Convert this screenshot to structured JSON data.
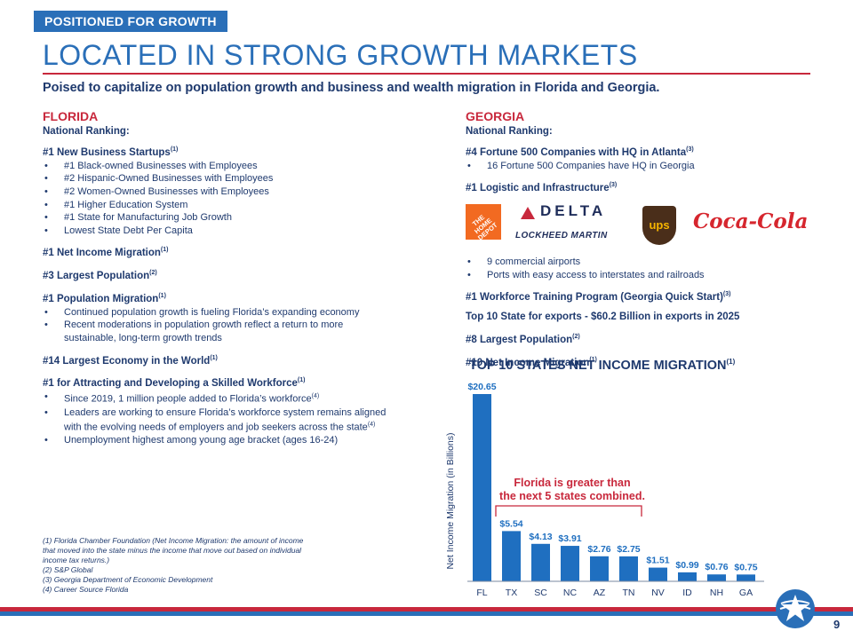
{
  "header": {
    "tag": "POSITIONED FOR GROWTH",
    "title": "LOCATED IN STRONG GROWTH MARKETS",
    "subtitle": "Poised to capitalize on population growth and business and wealth migration in Florida and Georgia."
  },
  "florida": {
    "title": "FLORIDA",
    "ranking_label": "National Ranking:",
    "h1": {
      "text": "#1 New Business Startups",
      "sup": "(1)"
    },
    "h1_bullets": [
      "#1 Black-owned Businesses with Employees",
      "#2 Hispanic-Owned Businesses with Employees",
      "#2 Women-Owned Businesses with Employees",
      "#1 Higher Education System",
      "#1 State for Manufacturing Job Growth",
      "Lowest State Debt Per Capita"
    ],
    "h2": {
      "text": "#1 Net Income Migration",
      "sup": "(1)"
    },
    "h3": {
      "text": "#3 Largest Population",
      "sup": "(2)"
    },
    "h4": {
      "text": "#1 Population Migration",
      "sup": "(1)"
    },
    "h4_bullets": [
      "Continued population growth is fueling Florida’s expanding economy",
      "Recent moderations in population growth reflect a return to more sustainable, long-term growth trends"
    ],
    "h5": {
      "text": "#14 Largest Economy in the World",
      "sup": "(1)"
    },
    "h6": {
      "text": "#1 for Attracting and Developing a Skilled Workforce",
      "sup": "(1)"
    },
    "h6_b1": {
      "text": "Since 2019, 1 million people added to Florida’s workforce",
      "sup": "(4)"
    },
    "h6_b2": {
      "text": "Leaders are working to ensure Florida’s workforce system remains aligned with the evolving needs of employers and job seekers across the state",
      "sup": "(4)"
    },
    "h6_b3": {
      "text": "Unemployment highest among young age bracket (ages 16-24)"
    }
  },
  "georgia": {
    "title": "GEORGIA",
    "ranking_label": "National Ranking:",
    "g1": {
      "text": "#4 Fortune 500 Companies with HQ in Atlanta",
      "sup": "(3)"
    },
    "g1_bullets": [
      "16 Fortune 500 Companies have HQ in Georgia"
    ],
    "g2": {
      "text": "#1 Logistic and Infrastructure",
      "sup": "(3)"
    },
    "logos": {
      "home_depot": "THE HOME DEPOT",
      "delta": "DELTA",
      "lockheed": "LOCKHEED MARTIN",
      "ups": "ups",
      "coca_cola": "Coca-Cola",
      "delta_color": "#c8283c",
      "home_depot_color": "#f26a21",
      "ups_color": "#4a2e1a",
      "coca_cola_color": "#d6262e"
    },
    "g2_bullets": [
      "9 commercial airports",
      "Ports with easy access to interstates and railroads"
    ],
    "g3": {
      "text": "#1 Workforce Training Program (Georgia Quick Start)",
      "sup": "(3)"
    },
    "g4": {
      "text": "Top 10 State for exports - $60.2 Billion in exports in 2025",
      "sup": ""
    },
    "g5": {
      "text": "#8 Largest Population",
      "sup": "(2)"
    },
    "g6": {
      "text": "#10 Net Income Migration",
      "sup": "(1)"
    }
  },
  "chart_data": {
    "type": "bar",
    "title": "TOP 10 STATES NET INCOME MIGRATION",
    "title_sup": "(1)",
    "ylabel": "Net Income Migration (in Billions)",
    "xlabel": "",
    "categories": [
      "FL",
      "TX",
      "SC",
      "NC",
      "AZ",
      "TN",
      "NV",
      "ID",
      "NH",
      "GA"
    ],
    "values": [
      20.65,
      5.54,
      4.13,
      3.91,
      2.76,
      2.75,
      1.51,
      0.99,
      0.76,
      0.75
    ],
    "labels": [
      "$20.65",
      "$5.54",
      "$4.13",
      "$3.91",
      "$2.76",
      "$2.75",
      "$1.51",
      "$0.99",
      "$0.76",
      "$0.75"
    ],
    "ylim": [
      0,
      21
    ],
    "grid": false,
    "bar_color": "#1f6fc0",
    "annotation": {
      "text": "Florida is greater than the next 5 states combined.",
      "color": "#c8283c",
      "span": [
        "TX",
        "TN"
      ]
    }
  },
  "footnotes": [
    "(1) Florida Chamber Foundation (Net Income Migration: the amount of income that moved into the state minus the income that move out based on individual income tax returns.)",
    "(2) S&P Global",
    "(3) Georgia Department of Economic Development",
    "(4) Career Source Florida"
  ],
  "footer": {
    "page_number": "9",
    "stripe_red": "#c8283c",
    "stripe_blue": "#2a6fb8"
  }
}
